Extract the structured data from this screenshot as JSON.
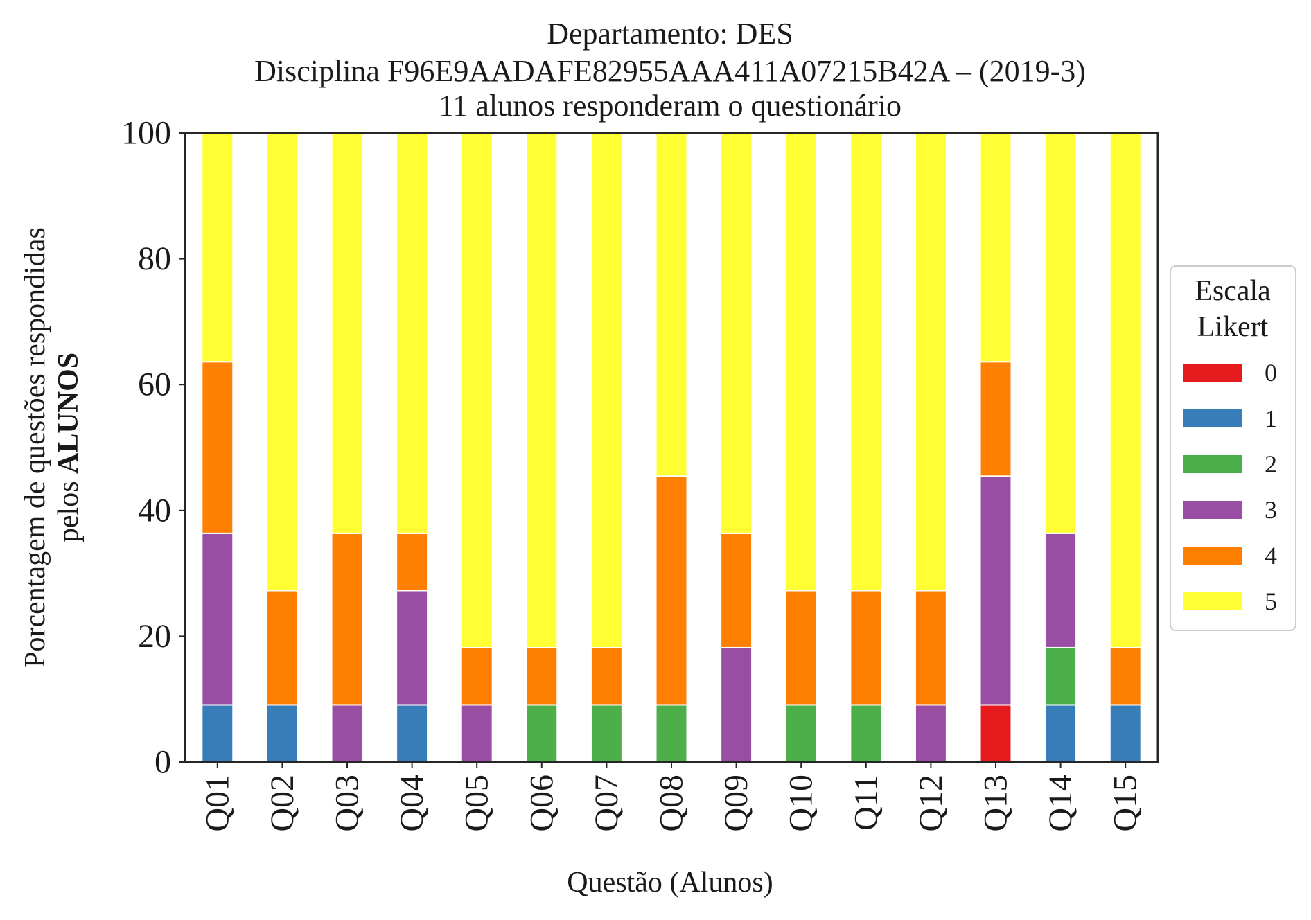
{
  "chart_data": {
    "type": "bar",
    "stacked": true,
    "title_lines": [
      "Departamento: DES",
      "Disciplina F96E9AADAFE82955AAA411A07215B42A – (2019-3)",
      "11 alunos responderam o questionário"
    ],
    "xlabel": "Questão (Alunos)",
    "ylabel_line1": "Porcentagem de questões respondidas",
    "ylabel_line2_prefix": "pelos ",
    "ylabel_line2_bold": "ALUNOS",
    "ylim": [
      0,
      100
    ],
    "yticks": [
      "0",
      "20",
      "40",
      "60",
      "80",
      "100"
    ],
    "grid": false,
    "legend_title_lines": [
      "Escala",
      "Likert"
    ],
    "legend_position": "center-right outside",
    "categories": [
      "Q01",
      "Q02",
      "Q03",
      "Q04",
      "Q05",
      "Q06",
      "Q07",
      "Q08",
      "Q09",
      "Q10",
      "Q11",
      "Q12",
      "Q13",
      "Q14",
      "Q15"
    ],
    "series": [
      {
        "name": "0",
        "color": "#e41a1c",
        "values": [
          0,
          0,
          0,
          0,
          0,
          0,
          0,
          0,
          0,
          0,
          0,
          0,
          9.09,
          0,
          0
        ]
      },
      {
        "name": "1",
        "color": "#377eb8",
        "values": [
          9.09,
          9.09,
          0,
          9.09,
          0,
          0,
          0,
          0,
          0,
          0,
          0,
          0,
          0,
          9.09,
          9.09
        ]
      },
      {
        "name": "2",
        "color": "#4daf4a",
        "values": [
          0,
          0,
          0,
          0,
          0,
          9.09,
          9.09,
          9.09,
          0,
          9.09,
          9.09,
          0,
          0,
          9.09,
          0
        ]
      },
      {
        "name": "3",
        "color": "#984ea3",
        "values": [
          27.27,
          0,
          9.09,
          18.18,
          9.09,
          0,
          0,
          0,
          18.18,
          0,
          0,
          9.09,
          36.36,
          18.18,
          0
        ]
      },
      {
        "name": "4",
        "color": "#ff7f00",
        "values": [
          27.27,
          18.18,
          27.27,
          9.09,
          9.09,
          9.09,
          9.09,
          36.36,
          18.18,
          18.18,
          18.18,
          18.18,
          18.18,
          0,
          9.09
        ]
      },
      {
        "name": "5",
        "color": "#ffff33",
        "values": [
          36.36,
          72.73,
          63.64,
          63.64,
          81.82,
          81.82,
          81.82,
          54.55,
          63.64,
          72.73,
          72.73,
          72.73,
          36.36,
          63.64,
          81.82
        ]
      }
    ]
  }
}
